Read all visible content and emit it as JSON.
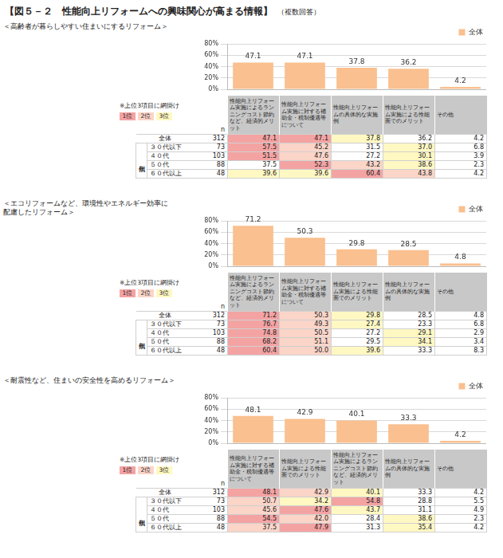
{
  "title": "【図５－２　性能向上リフォームへの興味関心が高まる情報】",
  "subtitle": "（複数回答）",
  "rank_note": "※上位3項目に網掛け",
  "rank_legend": [
    {
      "label": "1位",
      "color": "#f4a3a3"
    },
    {
      "label": "2位",
      "color": "#fbd5c8"
    },
    {
      "label": "3位",
      "color": "#fff8c2"
    }
  ],
  "n_label": "n",
  "group_label": "年代別",
  "chart_data": [
    {
      "type": "bar",
      "title": "＜高齢者が暮らしやすい住まいにするリフォーム＞",
      "categories": [
        "性能向上リフォーム実施によるランニングコスト節約など、経済的メリット",
        "性能向上リフォーム実施に対する補助金・税制優遇等について",
        "性能向上リフォームの具体的な実施例",
        "性能向上リフォーム実施による性能面でのメリット",
        "その他"
      ],
      "series": [
        {
          "name": "全体",
          "color": "#fac08f",
          "values": [
            47.1,
            47.1,
            37.8,
            36.2,
            4.2
          ]
        }
      ],
      "ylim": [
        0,
        80
      ],
      "yticks": [
        {
          "value": 0,
          "label": "0%"
        },
        {
          "value": 20,
          "label": "20%"
        },
        {
          "value": 40,
          "label": "40%"
        },
        {
          "value": 60,
          "label": "60%"
        },
        {
          "value": 80,
          "label": "80%"
        }
      ],
      "grid": true,
      "legend": "top-right",
      "data_labels": true,
      "tick_labels": "y"
    },
    {
      "type": "bar",
      "title": "＜エコリフォームなど、環境性やエネルギー効率に\n配慮したリフォーム＞",
      "categories": [
        "性能向上リフォーム実施によるランニングコスト節約など、経済的メリット",
        "性能向上リフォーム実施に対する補助金・税制優遇等について",
        "性能向上リフォーム実施による性能面でのメリット",
        "性能向上リフォームの具体的な実施例",
        "その他"
      ],
      "series": [
        {
          "name": "全体",
          "color": "#fac08f",
          "values": [
            71.2,
            50.3,
            29.8,
            28.5,
            4.8
          ]
        }
      ],
      "ylim": [
        0,
        80
      ],
      "yticks": [
        {
          "value": 0,
          "label": "0%"
        },
        {
          "value": 20,
          "label": "20%"
        },
        {
          "value": 40,
          "label": "40%"
        },
        {
          "value": 60,
          "label": "60%"
        },
        {
          "value": 80,
          "label": "80%"
        }
      ],
      "grid": true,
      "legend": "top-right",
      "data_labels": true,
      "tick_labels": "y"
    },
    {
      "type": "bar",
      "title": "＜耐震性など、住まいの安全性を高めるリフォーム＞",
      "categories": [
        "性能向上リフォーム実施に対する補助金・税制優遇等について",
        "性能向上リフォーム実施による性能面でのメリット",
        "性能向上リフォーム実施によるランニングコスト節約など、経済的メリット",
        "性能向上リフォームの具体的な実施例",
        "その他"
      ],
      "series": [
        {
          "name": "全体",
          "color": "#fac08f",
          "values": [
            48.1,
            42.9,
            40.1,
            33.3,
            4.2
          ]
        }
      ],
      "ylim": [
        0,
        80
      ],
      "yticks": [
        {
          "value": 0,
          "label": "0%"
        },
        {
          "value": 20,
          "label": "20%"
        },
        {
          "value": 40,
          "label": "40%"
        },
        {
          "value": 60,
          "label": "60%"
        },
        {
          "value": 80,
          "label": "80%"
        }
      ],
      "grid": true,
      "legend": "top-right",
      "data_labels": true,
      "tick_labels": "y"
    }
  ],
  "tables": [
    {
      "rows": [
        {
          "label": "全体",
          "n": 312,
          "values": [
            "47.1",
            "47.1",
            "37.8",
            "36.2",
            "4.2"
          ]
        },
        {
          "label": "３０代以下",
          "n": 73,
          "values": [
            "57.5",
            "45.2",
            "31.5",
            "37.0",
            "6.8"
          ]
        },
        {
          "label": "４０代",
          "n": 103,
          "values": [
            "51.5",
            "47.6",
            "27.2",
            "30.1",
            "3.9"
          ]
        },
        {
          "label": "５０代",
          "n": 88,
          "values": [
            "37.5",
            "52.3",
            "43.2",
            "38.6",
            "2.3"
          ]
        },
        {
          "label": "６０代以上",
          "n": 48,
          "values": [
            "39.6",
            "39.6",
            "60.4",
            "43.8",
            "4.2"
          ]
        }
      ]
    },
    {
      "rows": [
        {
          "label": "全体",
          "n": 312,
          "values": [
            "71.2",
            "50.3",
            "29.8",
            "28.5",
            "4.8"
          ]
        },
        {
          "label": "３０代以下",
          "n": 73,
          "values": [
            "76.7",
            "49.3",
            "27.4",
            "23.3",
            "6.8"
          ]
        },
        {
          "label": "４０代",
          "n": 103,
          "values": [
            "74.8",
            "50.5",
            "27.2",
            "29.1",
            "2.9"
          ]
        },
        {
          "label": "５０代",
          "n": 88,
          "values": [
            "68.2",
            "51.1",
            "29.5",
            "34.1",
            "3.4"
          ]
        },
        {
          "label": "６０代以上",
          "n": 48,
          "values": [
            "60.4",
            "50.0",
            "39.6",
            "33.3",
            "8.3"
          ]
        }
      ]
    },
    {
      "rows": [
        {
          "label": "全体",
          "n": 312,
          "values": [
            "48.1",
            "42.9",
            "40.1",
            "33.3",
            "4.2"
          ]
        },
        {
          "label": "３０代以下",
          "n": 73,
          "values": [
            "50.7",
            "34.2",
            "54.8",
            "28.8",
            "5.5"
          ]
        },
        {
          "label": "４０代",
          "n": 103,
          "values": [
            "45.6",
            "47.6",
            "43.7",
            "31.1",
            "4.9"
          ]
        },
        {
          "label": "５０代",
          "n": 88,
          "values": [
            "54.5",
            "42.0",
            "28.4",
            "38.6",
            "2.3"
          ]
        },
        {
          "label": "６０代以上",
          "n": 48,
          "values": [
            "37.5",
            "47.9",
            "31.3",
            "35.4",
            "4.2"
          ]
        }
      ]
    }
  ]
}
